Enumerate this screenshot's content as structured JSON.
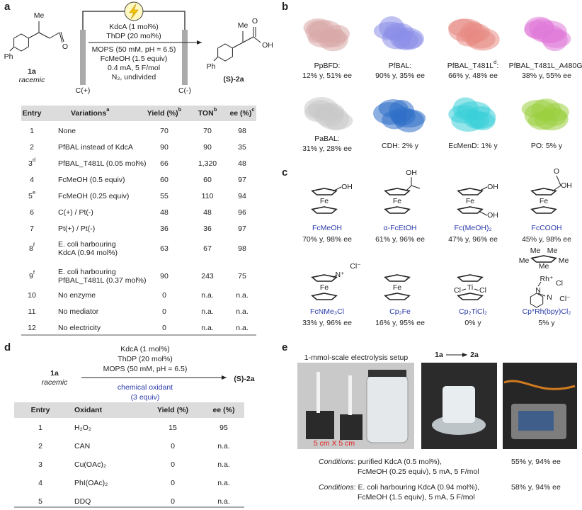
{
  "panel_a": {
    "label": "a",
    "scheme": {
      "substrate_atoms": [
        "Me",
        "O",
        "Ph"
      ],
      "substrate_label": "1a",
      "substrate_note": "racemic",
      "conditions": [
        "KdcA (1 mol%)",
        "ThDP (20 mol%)",
        "MOPS (50 mM, pH = 6.5)",
        "FcMeOH (1.5 equiv)",
        "0.4 mA, 5 F/mol",
        "N₂, undivided"
      ],
      "anode": "C(+)",
      "cathode": "C(-)",
      "product_atoms": [
        "Me",
        "O",
        "OH",
        "Ph"
      ],
      "product_label": "(S)-2a"
    },
    "table": {
      "headers": [
        {
          "text": "Entry"
        },
        {
          "text": "Variations",
          "note": "a"
        },
        {
          "text": "Yield (%)",
          "note": "b"
        },
        {
          "text": "TON",
          "note": "b"
        },
        {
          "text": "ee (%)",
          "note": "c"
        }
      ],
      "rows": [
        {
          "entry": "1",
          "variation": [
            "None"
          ],
          "yield": "70",
          "ton": "70",
          "ee": "98"
        },
        {
          "entry": "2",
          "variation": [
            "PfBAL instead of KdcA"
          ],
          "yield": "90",
          "ton": "90",
          "ee": "35"
        },
        {
          "entry": "3",
          "note": "d",
          "variation": [
            "PfBAL_T481L (0.05 mol%)"
          ],
          "yield": "66",
          "ton": "1,320",
          "ee": "48"
        },
        {
          "entry": "4",
          "variation": [
            "FcMeOH (0.5 equiv)"
          ],
          "yield": "60",
          "ton": "60",
          "ee": "97"
        },
        {
          "entry": "5",
          "note": "e",
          "variation": [
            "FcMeOH (0.25 equiv)"
          ],
          "yield": "55",
          "ton": "110",
          "ee": "94"
        },
        {
          "entry": "6",
          "variation": [
            "C(+) / Pt(-)"
          ],
          "yield": "48",
          "ton": "48",
          "ee": "96"
        },
        {
          "entry": "7",
          "variation": [
            "Pt(+) / Pt(-)"
          ],
          "yield": "36",
          "ton": "36",
          "ee": "97"
        },
        {
          "entry": "8",
          "note": "f",
          "variation": [
            "E. coli harbouring",
            "KdcA (0.94 mol%)"
          ],
          "yield": "63",
          "ton": "67",
          "ee": "98"
        },
        {
          "entry": "9",
          "note": "f",
          "variation": [
            "E. coli harbouring",
            "PfBAL_T481L (0.37 mol%)"
          ],
          "yield": "90",
          "ton": "243",
          "ee": "75"
        },
        {
          "entry": "10",
          "variation": [
            "No enzyme"
          ],
          "yield": "0",
          "ton": "n.a.",
          "ee": "n.a."
        },
        {
          "entry": "11",
          "variation": [
            "No mediator"
          ],
          "yield": "0",
          "ton": "n.a.",
          "ee": "n.a."
        },
        {
          "entry": "12",
          "variation": [
            "No electricity"
          ],
          "yield": "0",
          "ton": "n.a.",
          "ee": "n.a."
        }
      ]
    }
  },
  "panel_b": {
    "label": "b",
    "enzymes": [
      {
        "name": "PpBFD:",
        "result": "12% y, 51% ee"
      },
      {
        "name": "PfBAL:",
        "result": "90% y, 35% ee"
      },
      {
        "name": "PfBAL_T481L",
        "note": "d",
        "tail": ":",
        "result": "66% y, 48% ee"
      },
      {
        "name": "PfBAL_T481L_A480G:",
        "result": "38% y, 55% ee"
      },
      {
        "name": "PaBAL:",
        "result": "31% y, 28% ee"
      },
      {
        "name": "CDH: 2% y"
      },
      {
        "name": "EcMenD: 1% y"
      },
      {
        "name": "PO: 5% y"
      }
    ]
  },
  "panel_c": {
    "label": "c",
    "mediators": [
      {
        "name": "FcMeOH",
        "result": "70% y, 98% ee",
        "atoms": [
          "Fe",
          "OH"
        ]
      },
      {
        "name": "α-FcEtOH",
        "result": "61% y, 96% ee",
        "atoms": [
          "Fe",
          "OH"
        ]
      },
      {
        "name": "Fc(MeOH)₂",
        "result": "47% y, 96% ee",
        "atoms": [
          "Fe",
          "OH",
          "OH"
        ]
      },
      {
        "name": "FcCOOH",
        "result": "45% y, 98% ee",
        "atoms": [
          "Fe",
          "O",
          "OH"
        ]
      },
      {
        "name": "FcNMe₃Cl",
        "result": "33% y, 96% ee",
        "atoms": [
          "Fe",
          "N⁺",
          "Cl⁻"
        ]
      },
      {
        "name": "Cp₂Fe",
        "result": "16% y, 95% ee",
        "atoms": [
          "Fe"
        ]
      },
      {
        "name": "Cp₂TiCl₂",
        "result": "0% y",
        "atoms": [
          "Ti",
          "Cl",
          "Cl"
        ]
      },
      {
        "name": "Cp*Rh(bpy)Cl₂",
        "result": "5% y",
        "atoms": [
          "Me",
          "Me",
          "Me",
          "Me",
          "Me",
          "Rh⁺",
          "Cl",
          "N",
          "N",
          "Cl⁻"
        ]
      }
    ]
  },
  "panel_d": {
    "label": "d",
    "scheme": {
      "substrate_label": "1a",
      "substrate_note": "racemic",
      "conditions": [
        "KdcA (1 mol%)",
        "ThDP (20 mol%)",
        "MOPS (50 mM, pH = 6.5)"
      ],
      "oxidant": [
        "chemical oxidant",
        "(3 equiv)"
      ],
      "product_label": "(S)-2a"
    },
    "table": {
      "headers": [
        "Entry",
        "Oxidant",
        "Yield (%)",
        "ee (%)"
      ],
      "rows": [
        [
          "1",
          "H₂O₂",
          "15",
          "95"
        ],
        [
          "2",
          "CAN",
          "0",
          "n.a."
        ],
        [
          "3",
          "Cu(OAc)₂",
          "0",
          "n.a."
        ],
        [
          "4",
          "PhI(OAc)₂",
          "0",
          "n.a."
        ],
        [
          "5",
          "DDQ",
          "0",
          "n.a."
        ]
      ]
    }
  },
  "panel_e": {
    "label": "e",
    "caption": "1-mmol-scale electrolysis setup",
    "scale": "5 cm X 5 cm",
    "reactant": "1a",
    "product": "2a",
    "conditions": [
      {
        "label": "Conditions",
        "lines": [
          ": purified KdcA (0.5 mol%),",
          "FcMeOH (0.25 equiv), 5 mA, 5 F/mol"
        ],
        "result": "55% y, 94% ee"
      },
      {
        "label": "Conditions",
        "lines": [
          ": E. coli harbouring KdcA (0.94 mol%),",
          "FcMeOH (1.5 equiv), 5 mA, 5 F/mol"
        ],
        "result": "58% y, 94% ee"
      }
    ]
  }
}
